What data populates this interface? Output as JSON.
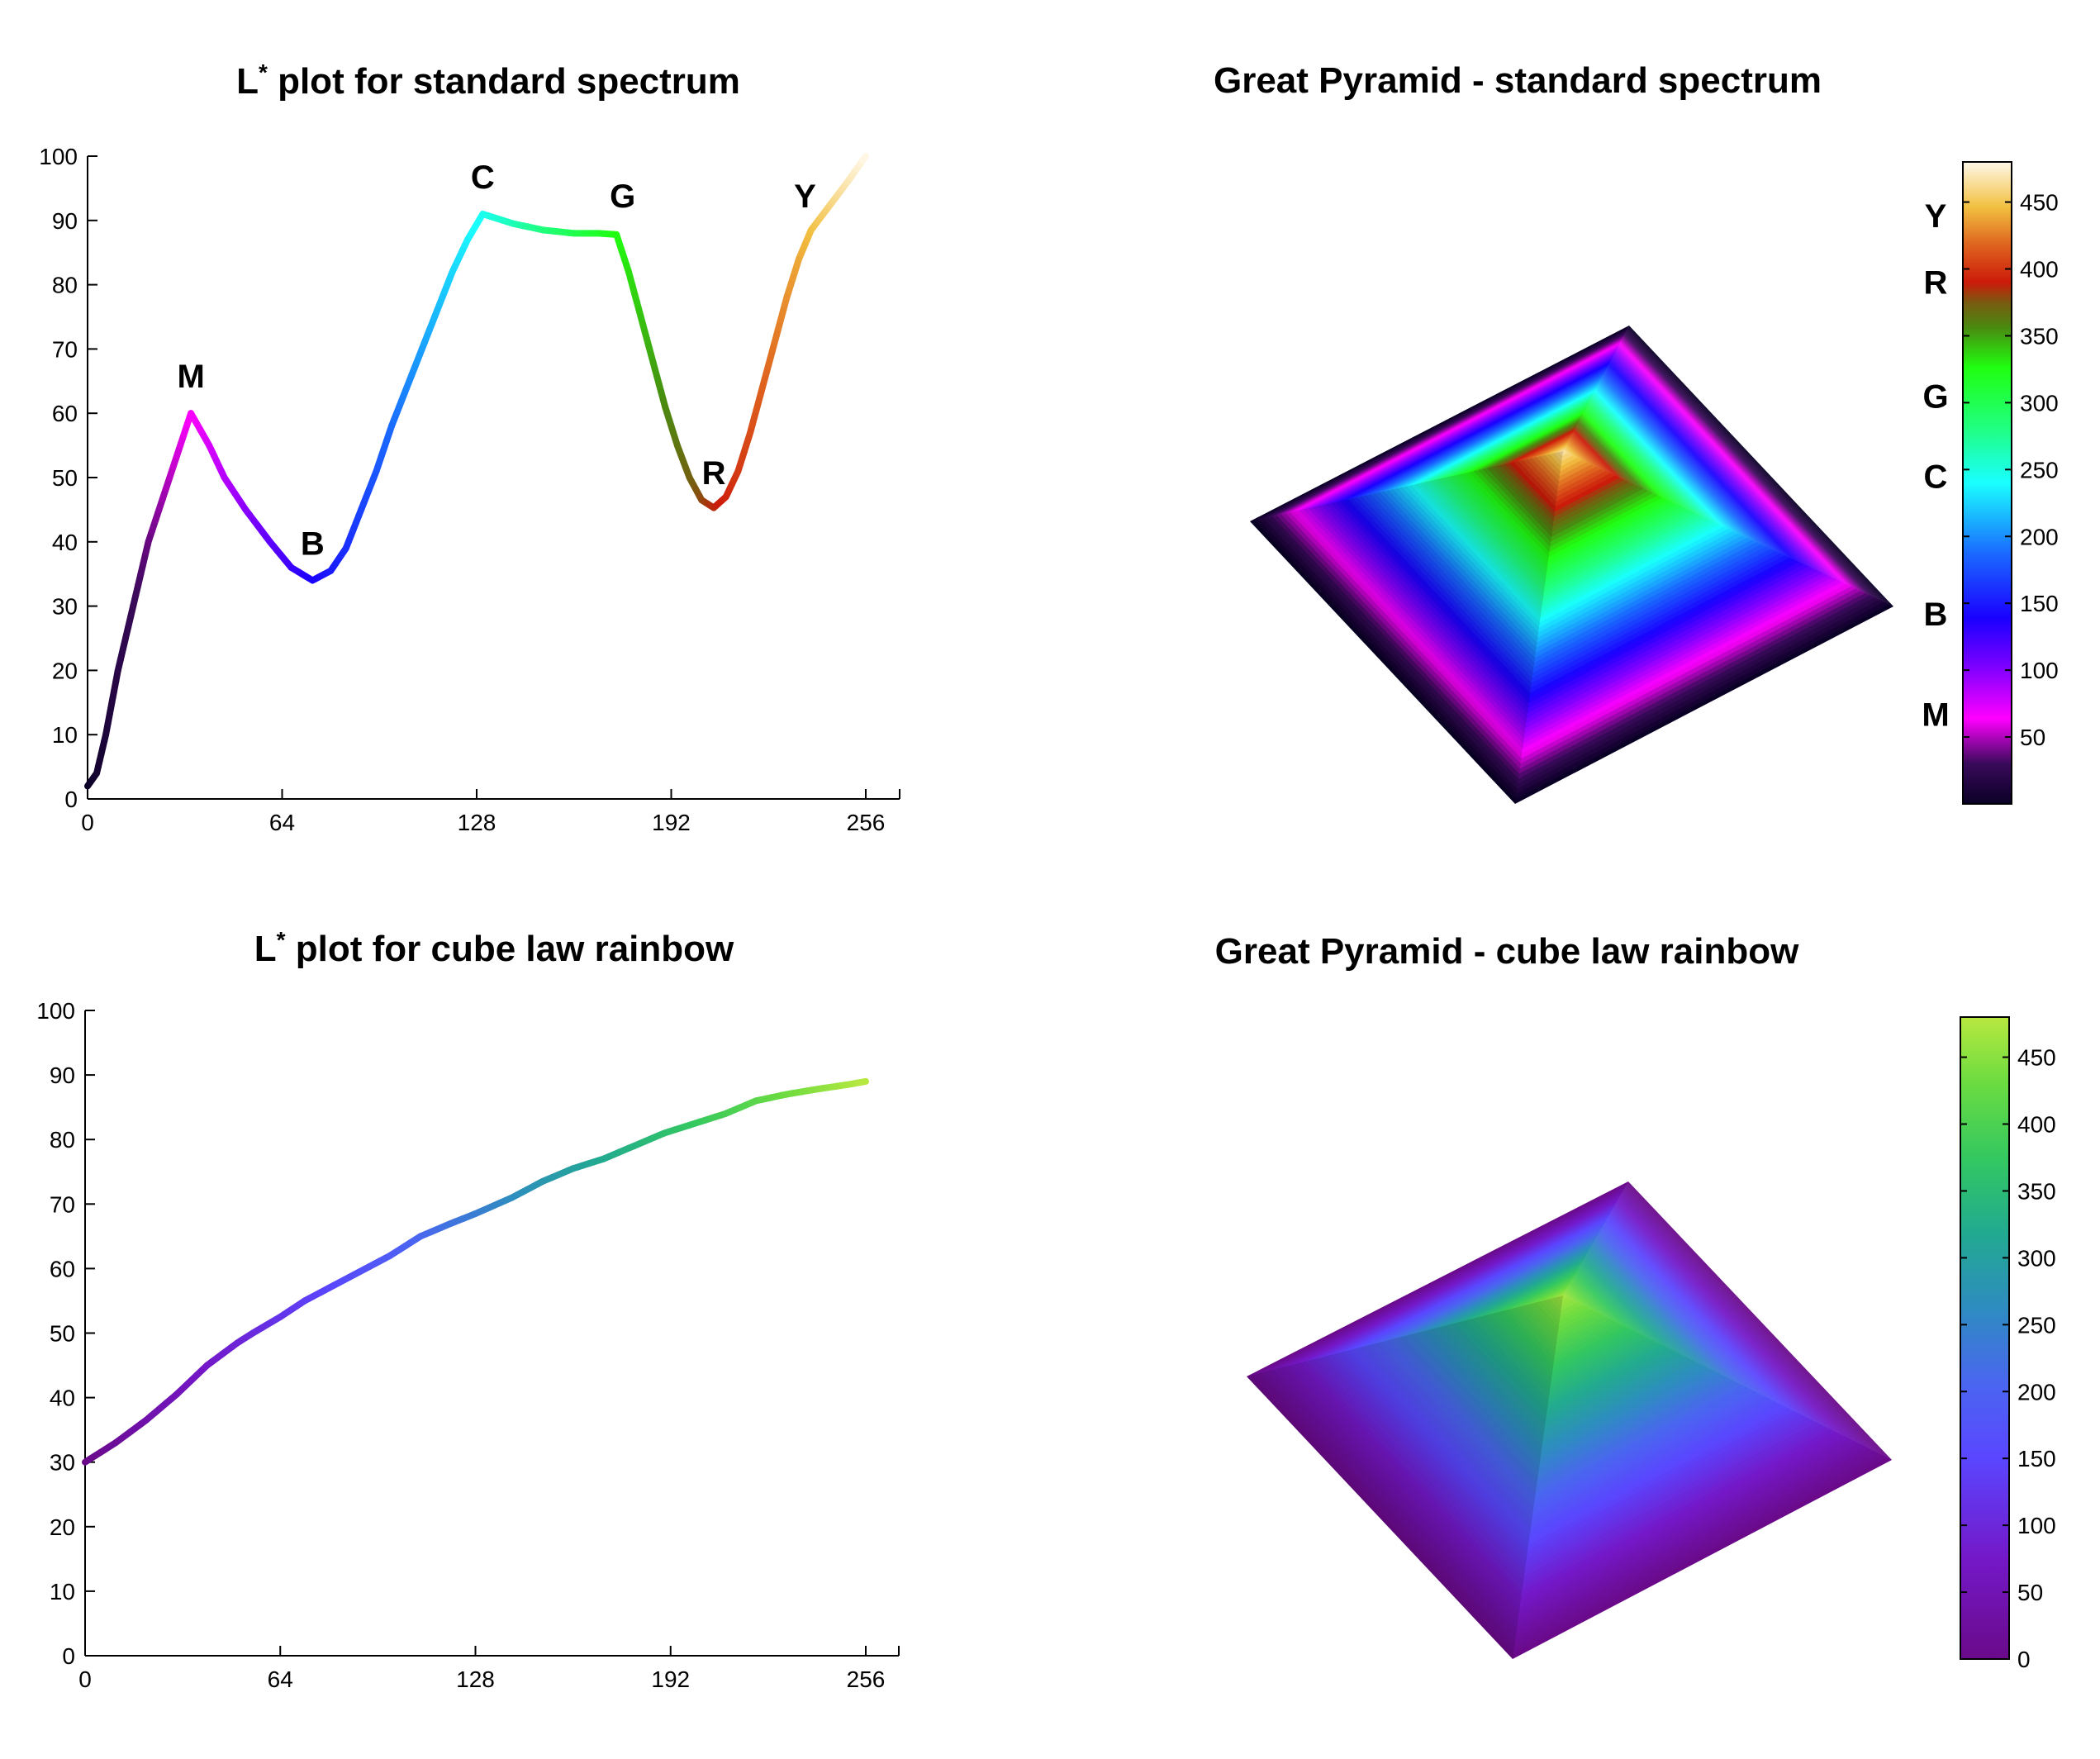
{
  "chart_data": [
    {
      "type": "line",
      "title": "L* plot for standard spectrum",
      "title_main": "L",
      "title_sup": "*",
      "title_rest": " plot for standard spectrum",
      "xlim": [
        0,
        265
      ],
      "ylim": [
        0,
        100
      ],
      "xticks": [
        0,
        64,
        128,
        192,
        256
      ],
      "yticks": [
        0,
        10,
        20,
        30,
        40,
        50,
        60,
        70,
        80,
        90,
        100
      ],
      "x": [
        0,
        3,
        6,
        10,
        15,
        20,
        27,
        34,
        40,
        45,
        52,
        60,
        67,
        74,
        80,
        85,
        90,
        95,
        100,
        105,
        110,
        115,
        120,
        125,
        130,
        140,
        150,
        160,
        168,
        174,
        178,
        182,
        186,
        190,
        194,
        198,
        202,
        206,
        210,
        214,
        218,
        222,
        226,
        230,
        234,
        238,
        242,
        246,
        250,
        256
      ],
      "y": [
        2,
        4,
        10,
        20,
        30,
        40,
        50,
        60,
        55,
        50,
        45,
        40,
        36,
        34,
        35.5,
        39,
        45,
        51,
        58,
        64,
        70,
        76,
        82,
        87,
        91,
        89.5,
        88.5,
        88,
        88,
        87.8,
        82,
        75,
        68,
        61,
        55,
        50,
        46.5,
        45.3,
        47,
        51,
        57,
        64,
        71,
        78,
        84,
        88.5,
        91,
        93.5,
        96,
        100
      ],
      "colormap": [
        [
          0,
          "#0a0026"
        ],
        [
          16,
          "#3a0a5a"
        ],
        [
          34,
          "#ff00ff"
        ],
        [
          54,
          "#8000ff"
        ],
        [
          74,
          "#1a00ff"
        ],
        [
          100,
          "#1a6aff"
        ],
        [
          128,
          "#1affff"
        ],
        [
          150,
          "#20ff80"
        ],
        [
          174,
          "#20ff10"
        ],
        [
          190,
          "#4a8a10"
        ],
        [
          200,
          "#7a5a10"
        ],
        [
          208,
          "#cc1a0a"
        ],
        [
          224,
          "#e06a20"
        ],
        [
          238,
          "#f2c040"
        ],
        [
          256,
          "#fff8e8"
        ]
      ],
      "annotations": [
        {
          "text": "M",
          "x": 34,
          "y": 64
        },
        {
          "text": "B",
          "x": 74,
          "y": 38
        },
        {
          "text": "C",
          "x": 130,
          "y": 95
        },
        {
          "text": "G",
          "x": 176,
          "y": 92
        },
        {
          "text": "R",
          "x": 206,
          "y": 49
        },
        {
          "text": "Y",
          "x": 236,
          "y": 92
        }
      ]
    },
    {
      "type": "line",
      "title": "L* plot for cube law rainbow",
      "title_main": "L",
      "title_sup": "*",
      "title_rest": " plot for cube law rainbow",
      "xlim": [
        0,
        265
      ],
      "ylim": [
        0,
        100
      ],
      "xticks": [
        0,
        64,
        128,
        192,
        256
      ],
      "yticks": [
        0,
        10,
        20,
        30,
        40,
        50,
        60,
        70,
        80,
        90,
        100
      ],
      "x": [
        0,
        10,
        20,
        30,
        40,
        50,
        55,
        64,
        72,
        80,
        90,
        100,
        110,
        120,
        128,
        140,
        150,
        160,
        170,
        180,
        190,
        200,
        210,
        220,
        230,
        240,
        250,
        256
      ],
      "y": [
        30,
        33,
        36.5,
        40.5,
        45,
        48.5,
        50,
        52.5,
        55,
        57,
        59.5,
        62,
        65,
        67,
        68.5,
        71,
        73.5,
        75.5,
        77,
        79,
        81,
        82.5,
        84,
        86,
        87,
        87.8,
        88.5,
        89
      ],
      "colormap": [
        [
          0,
          "#6a0a8a"
        ],
        [
          40,
          "#7418c8"
        ],
        [
          80,
          "#5a46ff"
        ],
        [
          110,
          "#4a66f0"
        ],
        [
          140,
          "#2e8cc0"
        ],
        [
          170,
          "#22aa90"
        ],
        [
          200,
          "#34c860"
        ],
        [
          230,
          "#6cdc40"
        ],
        [
          256,
          "#b8e840"
        ]
      ]
    },
    {
      "type": "heatmap",
      "title": "Great Pyramid - standard spectrum",
      "colorbar_range": [
        0,
        480
      ],
      "colorbar_ticks": [
        50,
        100,
        150,
        200,
        250,
        300,
        350,
        400,
        450
      ],
      "colorbar_labels": [
        {
          "text": "Y",
          "value": 440
        },
        {
          "text": "R",
          "value": 390
        },
        {
          "text": "G",
          "value": 305
        },
        {
          "text": "C",
          "value": 245
        },
        {
          "text": "B",
          "value": 142
        },
        {
          "text": "M",
          "value": 67
        }
      ]
    },
    {
      "type": "heatmap",
      "title": "Great Pyramid - cube law rainbow",
      "colorbar_range": [
        0,
        480
      ],
      "colorbar_ticks": [
        0,
        50,
        100,
        150,
        200,
        250,
        300,
        350,
        400,
        450
      ],
      "colorbar_labels": []
    }
  ]
}
